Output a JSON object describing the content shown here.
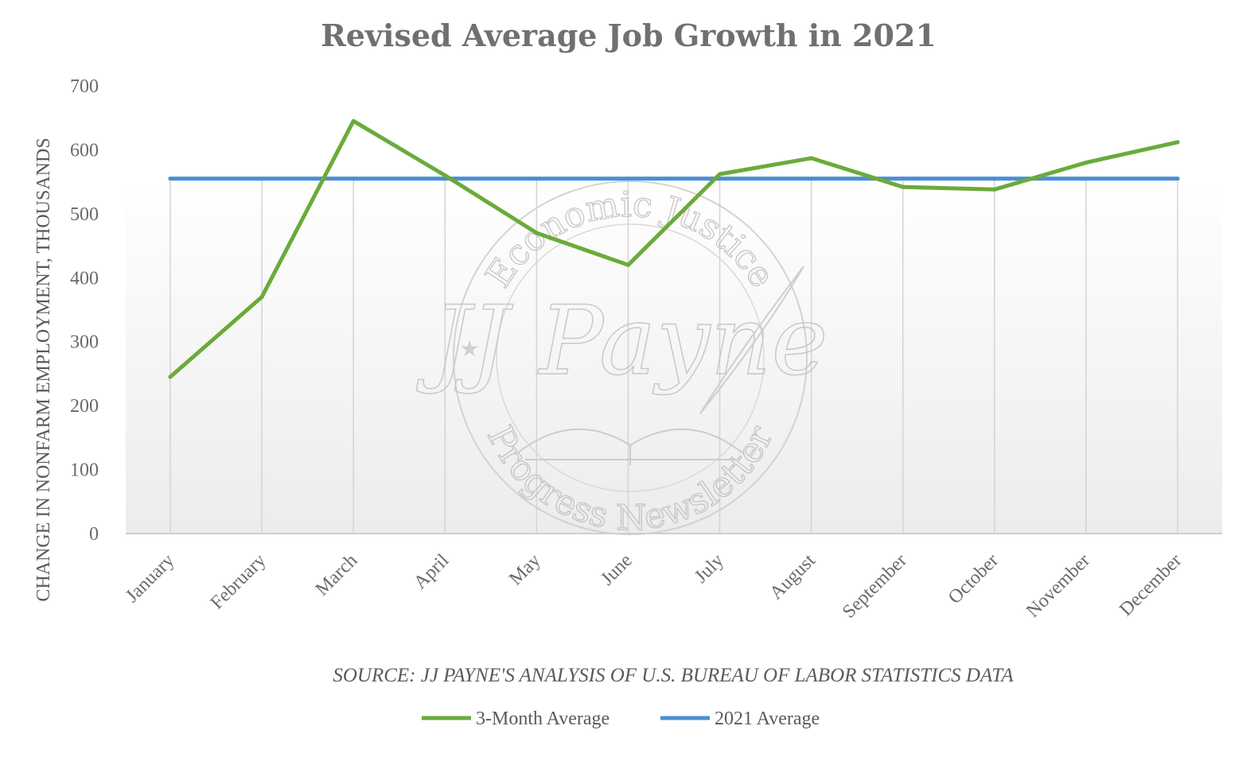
{
  "chart_data": {
    "type": "line",
    "title": "Revised Average Job Growth in 2021",
    "ylabel": "CHANGE IN NONFARM EMPLOYMENT, THOUSANDS",
    "xlabel": "",
    "source": "SOURCE: JJ PAYNE'S ANALYSIS OF U.S. BUREAU OF LABOR STATISTICS DATA",
    "categories": [
      "January",
      "February",
      "March",
      "April",
      "May",
      "June",
      "July",
      "August",
      "September",
      "October",
      "November",
      "December"
    ],
    "ylim": [
      0,
      700
    ],
    "yticks": [
      0,
      100,
      200,
      300,
      400,
      500,
      600,
      700
    ],
    "grid": "vertical",
    "legend_position": "bottom",
    "series": [
      {
        "name": "3-Month Average",
        "color": "#6aab3a",
        "values": [
          245,
          370,
          645,
          560,
          470,
          420,
          562,
          587,
          542,
          538,
          580,
          612
        ]
      },
      {
        "name": "2021 Average",
        "color": "#4a8fd4",
        "values": [
          555,
          555,
          555,
          555,
          555,
          555,
          555,
          555,
          555,
          555,
          555,
          555
        ]
      }
    ]
  },
  "watermark": {
    "top_text": "Economic Justice",
    "bottom_text": "Progress Newsletter",
    "center_text": "JJ Payne"
  }
}
